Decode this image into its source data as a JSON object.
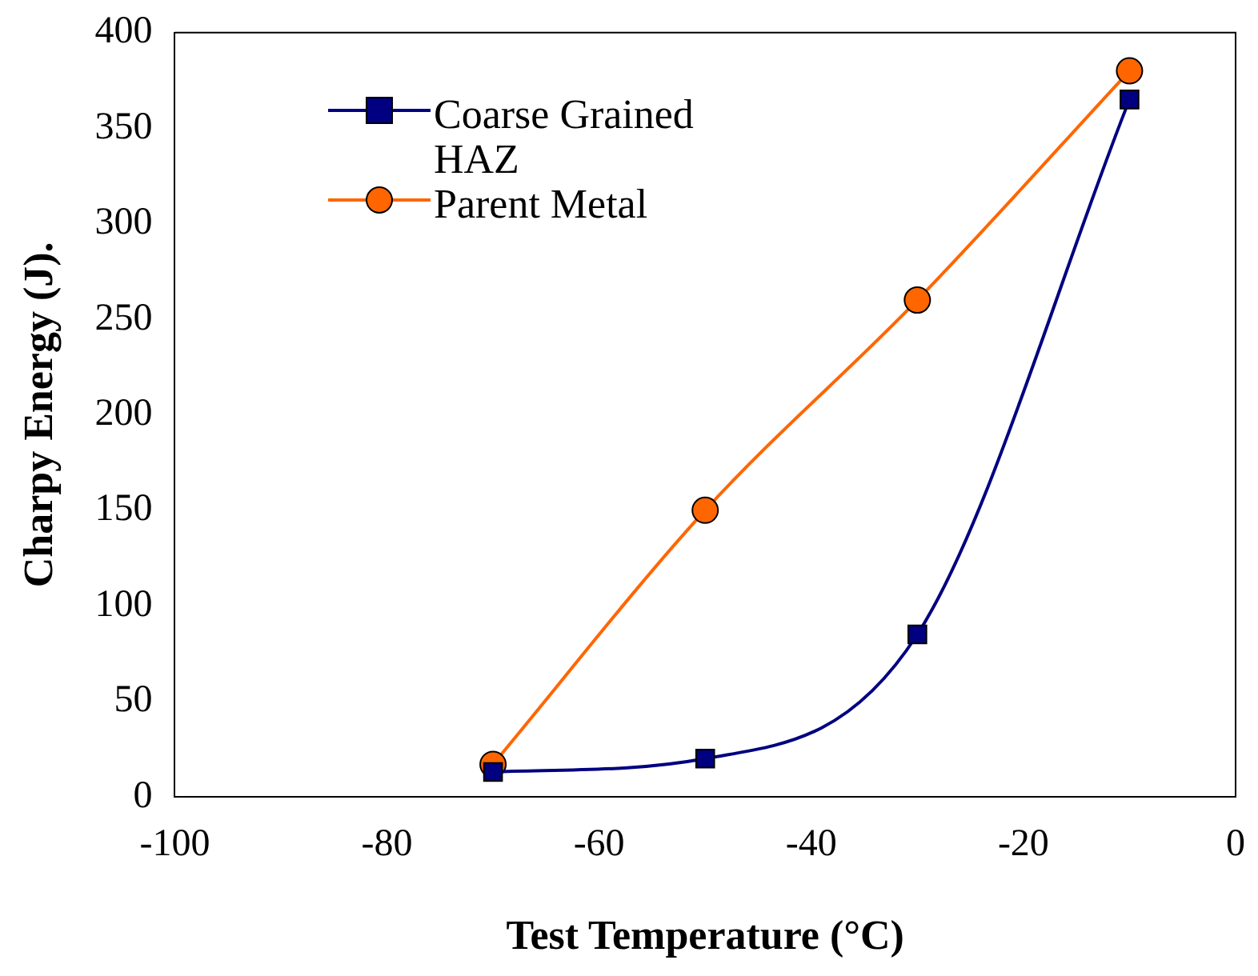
{
  "chart_data": {
    "type": "line",
    "xlabel": "Test Temperature (°C)",
    "ylabel": "Charpy Energy (J).",
    "xlim": [
      -100,
      0
    ],
    "xticks": [
      -100,
      -80,
      -60,
      -40,
      -20,
      0
    ],
    "ylim": [
      0,
      400
    ],
    "yticks": [
      0,
      50,
      100,
      150,
      200,
      250,
      300,
      350,
      400
    ],
    "grid": false,
    "legend": "top left",
    "series": [
      {
        "name": "Coarse Grained HAZ",
        "color": "#000080",
        "marker": "square",
        "x": [
          -70,
          -50,
          -30,
          -10
        ],
        "values": [
          13,
          20,
          85,
          365
        ]
      },
      {
        "name": "Parent Metal",
        "color": "#ff6600",
        "marker": "circle",
        "x": [
          -70,
          -50,
          -30,
          -10
        ],
        "values": [
          17,
          150,
          260,
          380
        ]
      }
    ]
  }
}
